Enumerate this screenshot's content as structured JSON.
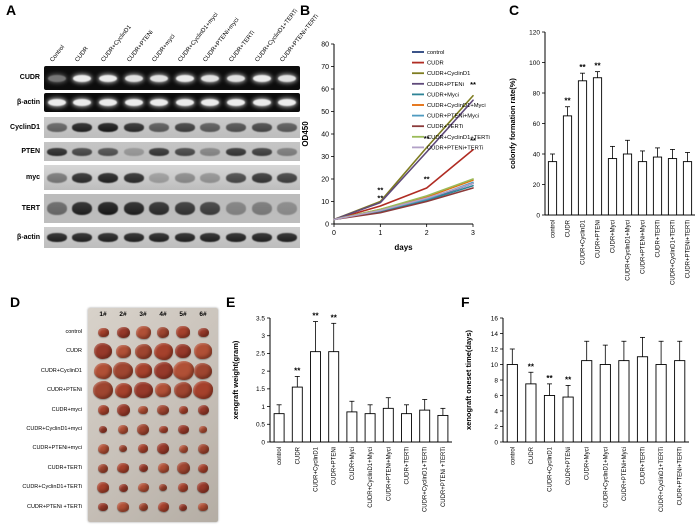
{
  "figure": {
    "panels": {
      "A": "A",
      "B": "B",
      "C": "C",
      "D": "D",
      "E": "E",
      "F": "F"
    }
  },
  "panelA": {
    "lanes": [
      "Control",
      "CUDR",
      "CUDR+CyclinD1",
      "CUDR+PTENi",
      "CUDR+myci",
      "CUDR+CyclinD1+myci",
      "CUDR+PTENi+myci",
      "CUDR+TERTi",
      "CUDR+CyclinD1+TERTi",
      "CUDR+PTENi+TERTi"
    ],
    "rows": [
      {
        "label": "CUDR",
        "type": "pcr",
        "bands": [
          0.45,
          0.95,
          0.95,
          0.9,
          0.9,
          0.95,
          0.9,
          0.9,
          0.95,
          0.9
        ]
      },
      {
        "label": "β-actin",
        "type": "pcr",
        "bands": [
          0.95,
          0.95,
          0.95,
          0.95,
          0.95,
          0.95,
          0.95,
          0.95,
          0.95,
          0.95
        ]
      },
      {
        "label": "CyclinD1",
        "type": "wb",
        "bands": [
          0.55,
          0.9,
          0.95,
          0.85,
          0.6,
          0.75,
          0.6,
          0.65,
          0.7,
          0.6
        ]
      },
      {
        "label": "PTEN",
        "type": "wb",
        "bands": [
          0.85,
          0.7,
          0.65,
          0.25,
          0.8,
          0.7,
          0.35,
          0.8,
          0.75,
          0.4
        ]
      },
      {
        "label": "myc",
        "type": "wb",
        "bands": [
          0.45,
          0.85,
          0.9,
          0.85,
          0.25,
          0.35,
          0.3,
          0.7,
          0.8,
          0.75
        ]
      },
      {
        "label": "TERT",
        "type": "wb",
        "bands": [
          0.5,
          0.9,
          0.95,
          0.9,
          0.85,
          0.8,
          0.75,
          0.35,
          0.4,
          0.3
        ]
      },
      {
        "label": "β-actin",
        "type": "wb",
        "bands": [
          0.9,
          0.9,
          0.9,
          0.9,
          0.9,
          0.9,
          0.9,
          0.9,
          0.9,
          0.9
        ]
      }
    ]
  },
  "panelD": {
    "column_headers": [
      "1#",
      "2#",
      "3#",
      "4#",
      "5#",
      "6#"
    ],
    "rows": [
      {
        "label": "control",
        "size": 13
      },
      {
        "label": "CUDR",
        "size": 17
      },
      {
        "label": "CUDR+CyclinD1",
        "size": 19
      },
      {
        "label": "CUDR+PTENi",
        "size": 18
      },
      {
        "label": "CUDR+myci",
        "size": 11
      },
      {
        "label": "CUDR+CyclinD1+myci",
        "size": 10
      },
      {
        "label": "CUDR+PTENi+myci",
        "size": 10
      },
      {
        "label": "CUDR+TERTi",
        "size": 11
      },
      {
        "label": "CUDR+CyclinD1+TERTi",
        "size": 10
      },
      {
        "label": "CUDR+PTENi +TERTi",
        "size": 10
      }
    ],
    "tumor_colors": [
      "#a5412c",
      "#96392a",
      "#b05036",
      "#9e4530"
    ]
  },
  "chart_data": [
    {
      "panel": "B",
      "type": "line",
      "title": "",
      "xlabel": "days",
      "ylabel": "OD450",
      "x": [
        0,
        1,
        2,
        3
      ],
      "xlim": [
        0,
        3
      ],
      "ylim": [
        0,
        80
      ],
      "yticks": [
        0,
        10,
        20,
        30,
        40,
        50,
        60,
        70,
        80
      ],
      "legend_position": "right",
      "series": [
        {
          "name": "control",
          "color": "#27427c",
          "values": [
            2,
            6,
            11,
            18
          ]
        },
        {
          "name": "CUDR",
          "color": "#b02c23",
          "values": [
            2,
            8,
            16,
            33
          ]
        },
        {
          "name": "CUDR+CyclinD1",
          "color": "#7e7c20",
          "values": [
            2,
            10,
            34,
            57
          ]
        },
        {
          "name": "CUDR+PTENi",
          "color": "#5f497a",
          "values": [
            2,
            9.5,
            32,
            55
          ]
        },
        {
          "name": "CUDR+Myci",
          "color": "#2e8396",
          "values": [
            2,
            5.5,
            10.5,
            17
          ]
        },
        {
          "name": "CUDR+CyclinD1+Myci",
          "color": "#e36c0a",
          "values": [
            2,
            6.5,
            12,
            19.5
          ]
        },
        {
          "name": "CUDR+PTENi+Myci",
          "color": "#4f9bc0",
          "values": [
            2,
            6,
            11,
            18.5
          ]
        },
        {
          "name": "CUDR+TERTi",
          "color": "#8b3a3a",
          "values": [
            2,
            5,
            10,
            16
          ]
        },
        {
          "name": "CUDR+CyclinD1+TERTi",
          "color": "#9bbb59",
          "values": [
            2,
            6.5,
            12.5,
            20
          ]
        },
        {
          "name": "CUDR+PTENi+TERTi",
          "color": "#b2a1c7",
          "values": [
            2,
            6,
            11.5,
            18
          ]
        }
      ],
      "annotations": [
        {
          "x": 1,
          "y": 14,
          "text": "**"
        },
        {
          "x": 1,
          "y": 10.5,
          "text": "**"
        },
        {
          "x": 2,
          "y": 37,
          "text": "**"
        },
        {
          "x": 2,
          "y": 19,
          "text": "**"
        },
        {
          "x": 3,
          "y": 61,
          "text": "**"
        },
        {
          "x": 3,
          "y": 36,
          "text": "**"
        }
      ]
    },
    {
      "panel": "C",
      "type": "bar",
      "title": "",
      "xlabel": "",
      "ylabel": "colonfy formation rate(%)",
      "categories": [
        "control",
        "CUDR",
        "CUDR+CyclinD1",
        "CUDR+PTENi",
        "CUDR+Myci",
        "CUDR+CyclinD1+Myci",
        "CUDR+PTENi+Myci",
        "CUDR+TERTi",
        "CUDR+CyclinD1+TERTi",
        "CUDR+PTENi+TERTi"
      ],
      "values": [
        35,
        65,
        88,
        90,
        37,
        40,
        35,
        38,
        37,
        35
      ],
      "errors": [
        5,
        6,
        5,
        4,
        8,
        9,
        7,
        6,
        6,
        6
      ],
      "sig": [
        "",
        "**",
        "**",
        "**",
        "",
        "",
        "",
        "",
        "",
        ""
      ],
      "ylim": [
        0,
        120
      ],
      "yticks": [
        0,
        20,
        40,
        60,
        80,
        100,
        120
      ]
    },
    {
      "panel": "E",
      "type": "bar",
      "title": "",
      "xlabel": "",
      "ylabel": "xengraft weight(gram)",
      "categories": [
        "control",
        "CUDR",
        "CUDR+CyclinD1",
        "CUDR+PTENi",
        "CUDR+Myci",
        "CUDR+CyclinD1+Myci",
        "CUDR+PTENi+Myci",
        "CUDR+TERTi",
        "CUDR+CyclinD1+TERTi",
        "CUDR+PTENi +TERTi"
      ],
      "values": [
        0.8,
        1.55,
        2.55,
        2.55,
        0.85,
        0.8,
        0.95,
        0.8,
        0.9,
        0.75
      ],
      "errors": [
        0.25,
        0.3,
        0.85,
        0.8,
        0.3,
        0.25,
        0.3,
        0.25,
        0.3,
        0.2
      ],
      "sig": [
        "",
        "**",
        "**",
        "**",
        "",
        "",
        "",
        "",
        "",
        ""
      ],
      "ylim": [
        0,
        3.5
      ],
      "yticks": [
        0,
        0.5,
        1,
        1.5,
        2,
        2.5,
        3,
        3.5
      ]
    },
    {
      "panel": "F",
      "type": "bar",
      "title": "",
      "xlabel": "",
      "ylabel": "xenograft oneset time(days)",
      "categories": [
        "control",
        "CUDR",
        "CUDR+CyclinD1",
        "CUDR+PTENi",
        "CUDR+Myci",
        "CUDR+CyclinD1+Myci",
        "CUDR+PTENi+Myci",
        "CUDR+TERTi",
        "CUDR+CyclinD1+TERTi",
        "CUDR+PTENi+TERTi"
      ],
      "values": [
        10,
        7.5,
        6,
        5.8,
        10.5,
        10,
        10.5,
        11,
        10,
        10.5
      ],
      "errors": [
        2,
        1.5,
        1.5,
        1.5,
        2.5,
        2.5,
        2.5,
        2.5,
        3,
        2.5
      ],
      "sig": [
        "",
        "**",
        "**",
        "**",
        "",
        "",
        "",
        "",
        "",
        ""
      ],
      "ylim": [
        0,
        16
      ],
      "yticks": [
        0,
        2,
        4,
        6,
        8,
        10,
        12,
        14,
        16
      ]
    }
  ]
}
